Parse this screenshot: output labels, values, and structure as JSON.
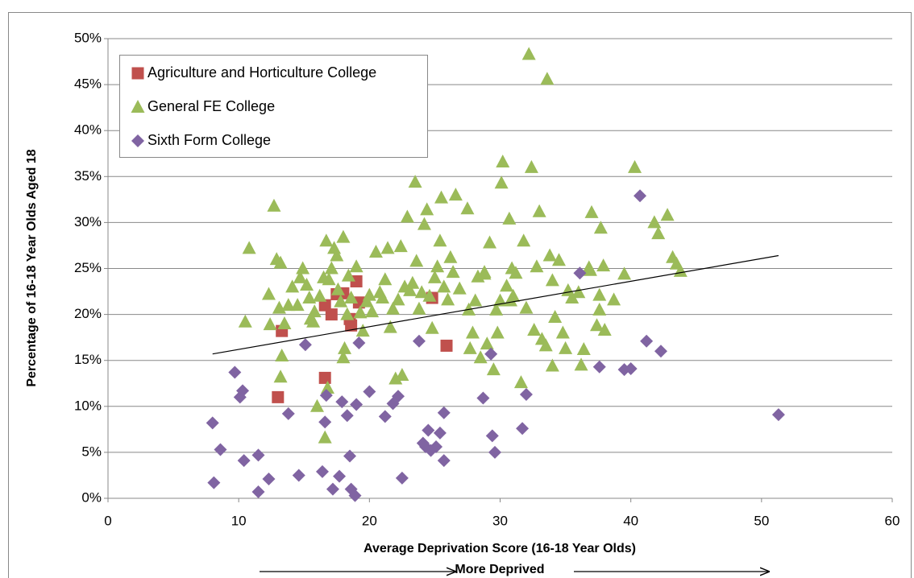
{
  "chart_data": {
    "type": "scatter",
    "x_label": "Average Deprivation Score (16-18 Year Olds)",
    "y_label": "Percentage of 16-18 Year Olds Aged 18",
    "annotation": "More Deprived",
    "xlim": [
      0,
      60
    ],
    "xticks": [
      0,
      10,
      20,
      30,
      40,
      50,
      60
    ],
    "ylim": [
      0,
      50
    ],
    "yticks": [
      {
        "value": 0,
        "label": "0%"
      },
      {
        "value": 5,
        "label": "5%"
      },
      {
        "value": 10,
        "label": "10%"
      },
      {
        "value": 15,
        "label": "15%"
      },
      {
        "value": 20,
        "label": "20%"
      },
      {
        "value": 25,
        "label": "25%"
      },
      {
        "value": 30,
        "label": "30%"
      },
      {
        "value": 35,
        "label": "35%"
      },
      {
        "value": 40,
        "label": "40%"
      },
      {
        "value": 45,
        "label": "45%"
      },
      {
        "value": 50,
        "label": "50%"
      }
    ],
    "grid": true,
    "legend": "upper left",
    "trendline": {
      "color": "#000000",
      "x": [
        8,
        51.3
      ],
      "values": [
        15.7,
        26.4
      ]
    },
    "series": [
      {
        "name": "Agriculture and Horticulture College",
        "color": "#c0504d",
        "marker": "square",
        "x": [
          13.0,
          13.3,
          16.6,
          16.6,
          17.1,
          17.5,
          18.0,
          18.5,
          19.0,
          19.2,
          18.6,
          24.8,
          25.9
        ],
        "values": [
          11.0,
          18.2,
          13.1,
          21.0,
          20.0,
          22.2,
          22.3,
          19.5,
          23.6,
          21.3,
          18.8,
          21.8,
          16.6
        ]
      },
      {
        "name": "General FE College",
        "color": "#9bbb59",
        "marker": "triangle",
        "x": [
          10.5,
          10.8,
          12.3,
          12.4,
          12.7,
          12.9,
          13.1,
          13.2,
          13.2,
          13.3,
          13.5,
          13.8,
          14.1,
          14.5,
          14.7,
          14.9,
          15.2,
          15.4,
          15.5,
          15.7,
          15.8,
          16.0,
          16.2,
          16.5,
          16.7,
          16.8,
          16.9,
          16.6,
          17.1,
          17.3,
          17.5,
          17.6,
          17.8,
          18.0,
          18.1,
          18.0,
          18.3,
          18.4,
          18.6,
          19.0,
          19.3,
          19.5,
          19.8,
          20.0,
          20.2,
          20.5,
          20.8,
          21.0,
          21.2,
          21.4,
          21.6,
          21.8,
          22.0,
          22.2,
          22.4,
          22.5,
          22.7,
          22.9,
          23.1,
          23.3,
          23.5,
          23.6,
          23.8,
          24.0,
          24.2,
          24.4,
          24.6,
          24.8,
          25.0,
          25.2,
          25.4,
          25.5,
          25.7,
          26.0,
          26.2,
          26.4,
          26.6,
          26.9,
          27.5,
          27.6,
          27.7,
          27.9,
          28.1,
          28.3,
          28.5,
          28.8,
          29.0,
          29.2,
          29.5,
          29.7,
          29.8,
          30.0,
          30.1,
          30.2,
          30.5,
          30.7,
          30.9,
          31.0,
          31.2,
          31.6,
          31.8,
          32.0,
          32.2,
          32.4,
          32.6,
          32.8,
          33.0,
          33.2,
          33.5,
          33.6,
          33.8,
          34.0,
          34.2,
          34.5,
          34.8,
          35.0,
          35.2,
          35.5,
          36.0,
          36.2,
          36.4,
          36.8,
          37.0,
          37.4,
          37.6,
          37.7,
          37.9,
          38.0,
          38.7,
          39.5,
          40.3,
          41.8,
          42.1,
          42.8,
          43.2,
          43.5,
          43.8,
          36.9,
          30.8,
          37.6,
          34.0,
          28.8
        ],
        "values": [
          19.2,
          27.2,
          22.2,
          18.9,
          31.8,
          26.0,
          20.7,
          25.6,
          13.2,
          15.5,
          19.0,
          21.0,
          23.0,
          21.0,
          24.0,
          25.0,
          23.2,
          21.8,
          19.5,
          19.2,
          20.3,
          10.0,
          22.0,
          24.0,
          28.0,
          12.0,
          23.8,
          6.6,
          25.0,
          27.2,
          26.4,
          22.7,
          21.4,
          28.4,
          16.3,
          15.3,
          20.0,
          24.2,
          21.8,
          25.2,
          20.2,
          18.2,
          21.4,
          22.1,
          20.3,
          26.8,
          22.4,
          21.8,
          23.8,
          27.2,
          18.6,
          20.6,
          13.0,
          21.6,
          27.4,
          13.4,
          23.0,
          30.6,
          22.6,
          23.4,
          34.4,
          25.8,
          20.6,
          22.4,
          29.8,
          31.4,
          22.0,
          18.5,
          24.0,
          25.2,
          28.0,
          32.7,
          23.0,
          21.6,
          26.2,
          24.6,
          33.0,
          22.8,
          31.5,
          20.5,
          16.3,
          18.0,
          21.5,
          24.1,
          15.3,
          24.6,
          16.8,
          27.8,
          14.0,
          20.5,
          18.0,
          21.5,
          34.3,
          36.6,
          23.1,
          30.4,
          25.0,
          22.0,
          24.5,
          12.6,
          28.0,
          20.7,
          48.3,
          36.0,
          18.3,
          25.2,
          31.2,
          17.3,
          16.6,
          45.6,
          26.4,
          14.4,
          19.7,
          25.9,
          18.0,
          16.3,
          22.6,
          21.8,
          22.4,
          14.5,
          16.2,
          25.1,
          31.1,
          18.8,
          20.5,
          29.4,
          25.3,
          18.3,
          21.6,
          24.4,
          36.0,
          30.0,
          28.8,
          30.8,
          26.2,
          25.5,
          24.7,
          24.8,
          21.5,
          22.1,
          23.7,
          24.4
        ]
      },
      {
        "name": "Sixth Form College",
        "color": "#8064a2",
        "marker": "diamond",
        "x": [
          8.0,
          8.1,
          8.6,
          9.7,
          10.1,
          10.3,
          10.4,
          11.5,
          11.5,
          12.3,
          13.8,
          14.6,
          15.1,
          16.4,
          16.6,
          16.7,
          17.2,
          17.7,
          17.9,
          18.3,
          18.5,
          18.6,
          18.9,
          19.0,
          19.2,
          20.0,
          21.2,
          21.8,
          22.2,
          22.5,
          23.8,
          24.1,
          24.5,
          24.7,
          25.1,
          25.4,
          25.7,
          25.7,
          28.7,
          29.3,
          29.4,
          29.6,
          31.7,
          32.0,
          36.1,
          37.6,
          39.5,
          40.0,
          40.7,
          41.2,
          42.3,
          51.3,
          24.3
        ],
        "values": [
          8.2,
          1.7,
          5.3,
          13.7,
          11.0,
          11.7,
          4.1,
          4.7,
          0.7,
          2.1,
          9.2,
          2.5,
          16.7,
          2.9,
          8.3,
          11.2,
          1.0,
          2.4,
          10.5,
          9.0,
          4.6,
          1.0,
          0.3,
          10.2,
          16.9,
          11.6,
          8.9,
          10.3,
          11.1,
          2.2,
          17.1,
          6.0,
          7.4,
          5.2,
          5.6,
          7.1,
          9.3,
          4.1,
          10.9,
          15.7,
          6.8,
          5.0,
          7.6,
          11.3,
          24.5,
          14.3,
          14.0,
          14.1,
          32.9,
          17.1,
          16.0,
          9.1,
          5.6
        ]
      }
    ]
  }
}
